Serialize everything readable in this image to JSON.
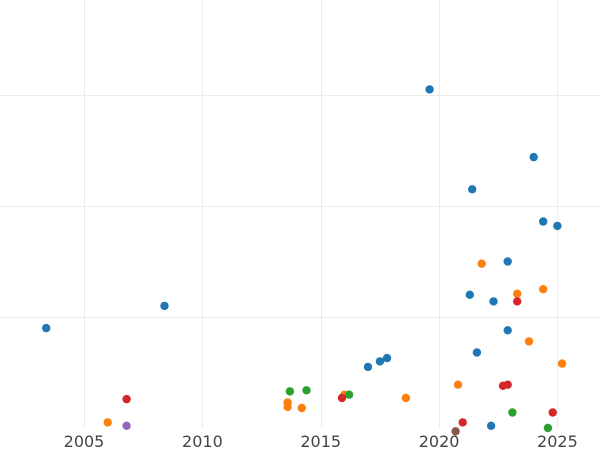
{
  "chart_data": {
    "type": "scatter",
    "title": "",
    "xlabel": "",
    "ylabel": "",
    "x_tick_labels": [
      "2005",
      "2010",
      "2015",
      "2020",
      "2025"
    ],
    "x_ticks": [
      2005,
      2010,
      2015,
      2020,
      2025
    ],
    "y_gridlines": [
      1,
      2,
      3
    ],
    "xlim": [
      2001.45,
      2026.8
    ],
    "ylim": [
      0.0,
      3.855
    ],
    "grid": true,
    "legend": "none",
    "series": [
      {
        "color": "#1f77b4",
        "points": [
          {
            "x": 2003.4,
            "y": 0.9
          },
          {
            "x": 2008.4,
            "y": 1.1
          },
          {
            "x": 2017.0,
            "y": 0.55
          },
          {
            "x": 2017.5,
            "y": 0.6
          },
          {
            "x": 2017.8,
            "y": 0.63
          },
          {
            "x": 2019.6,
            "y": 3.05
          },
          {
            "x": 2021.3,
            "y": 1.2
          },
          {
            "x": 2021.4,
            "y": 2.15
          },
          {
            "x": 2021.6,
            "y": 0.68
          },
          {
            "x": 2022.2,
            "y": 0.02
          },
          {
            "x": 2022.3,
            "y": 1.14
          },
          {
            "x": 2022.9,
            "y": 1.5
          },
          {
            "x": 2022.9,
            "y": 0.88
          },
          {
            "x": 2024.0,
            "y": 2.44
          },
          {
            "x": 2024.4,
            "y": 1.86
          },
          {
            "x": 2025.0,
            "y": 1.82
          }
        ]
      },
      {
        "color": "#ff7f0e",
        "points": [
          {
            "x": 2006.0,
            "y": 0.05
          },
          {
            "x": 2013.6,
            "y": 0.23
          },
          {
            "x": 2013.6,
            "y": 0.19
          },
          {
            "x": 2014.2,
            "y": 0.18
          },
          {
            "x": 2016.0,
            "y": 0.3
          },
          {
            "x": 2018.6,
            "y": 0.27
          },
          {
            "x": 2020.8,
            "y": 0.39
          },
          {
            "x": 2021.8,
            "y": 1.48
          },
          {
            "x": 2023.3,
            "y": 1.21
          },
          {
            "x": 2023.8,
            "y": 0.78
          },
          {
            "x": 2024.4,
            "y": 1.25
          },
          {
            "x": 2025.2,
            "y": 0.58
          }
        ]
      },
      {
        "color": "#2ca02c",
        "points": [
          {
            "x": 2013.7,
            "y": 0.33
          },
          {
            "x": 2014.4,
            "y": 0.34
          },
          {
            "x": 2016.2,
            "y": 0.3
          },
          {
            "x": 2023.1,
            "y": 0.14
          },
          {
            "x": 2024.6,
            "y": 0.0
          }
        ]
      },
      {
        "color": "#d62728",
        "points": [
          {
            "x": 2006.8,
            "y": 0.26
          },
          {
            "x": 2015.9,
            "y": 0.27
          },
          {
            "x": 2021.0,
            "y": 0.05
          },
          {
            "x": 2022.7,
            "y": 0.38
          },
          {
            "x": 2022.9,
            "y": 0.39
          },
          {
            "x": 2023.3,
            "y": 1.14
          },
          {
            "x": 2024.8,
            "y": 0.14
          }
        ]
      },
      {
        "color": "#9467bd",
        "points": [
          {
            "x": 2006.8,
            "y": 0.02
          }
        ]
      },
      {
        "color": "#8c564b",
        "points": [
          {
            "x": 2020.7,
            "y": -0.03
          }
        ]
      }
    ]
  }
}
